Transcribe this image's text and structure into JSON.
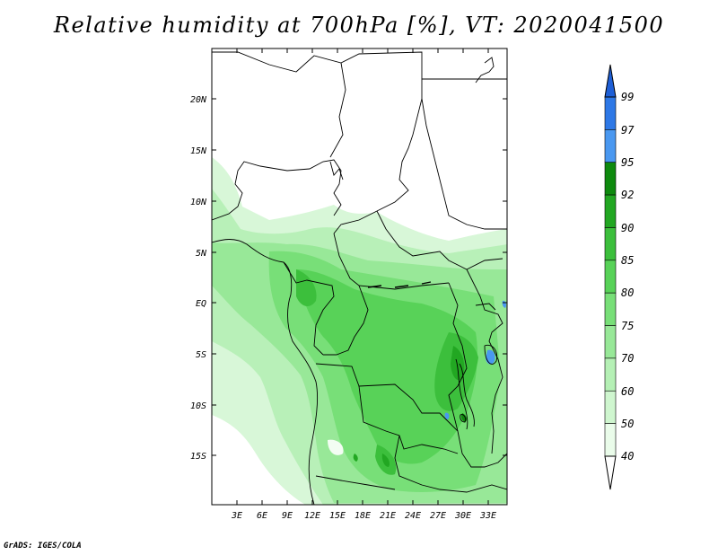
{
  "title": "Relative humidity at 700hPa [%], VT: 2020041500",
  "credit": "GrADS: IGES/COLA",
  "map": {
    "variable": "Relative humidity",
    "level": "700hPa",
    "units": "%",
    "valid_time": "2020041500",
    "lat_labels": [
      "20N",
      "15N",
      "10N",
      "5N",
      "EQ",
      "5S",
      "10S",
      "15S"
    ],
    "lon_labels": [
      "3E",
      "6E",
      "9E",
      "12E",
      "15E",
      "18E",
      "21E",
      "24E",
      "27E",
      "30E",
      "33E"
    ]
  },
  "colorbar": {
    "labels": [
      "99",
      "97",
      "95",
      "92",
      "90",
      "85",
      "80",
      "75",
      "70",
      "60",
      "50",
      "40"
    ],
    "colors": [
      "#1e5fd6",
      "#2e78e6",
      "#4a98f0",
      "#0e8a0e",
      "#22a722",
      "#3cbf3c",
      "#58d258",
      "#78df78",
      "#98e898",
      "#b5f0b5",
      "#cff6cf",
      "#eafcea"
    ]
  }
}
